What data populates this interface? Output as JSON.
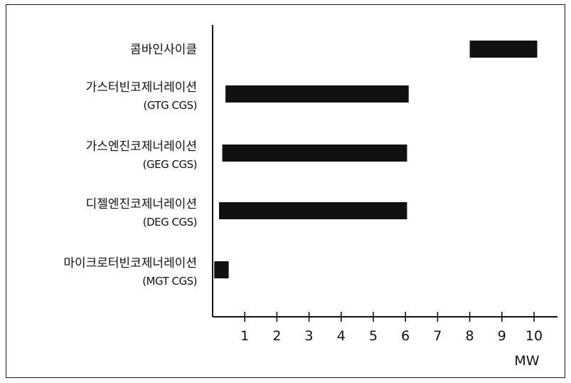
{
  "chart_data": {
    "type": "bar",
    "orientation": "horizontal",
    "categories": [
      {
        "label": "콤바인사이클",
        "sublabel": ""
      },
      {
        "label": "가스터빈코제너레이션",
        "sublabel": "(GTG CGS)"
      },
      {
        "label": "가스엔진코제너레이션",
        "sublabel": "(GEG CGS)"
      },
      {
        "label": "디젤엔진코제너레이션",
        "sublabel": "(DEG CGS)"
      },
      {
        "label": "마이크로터빈코제너레이션",
        "sublabel": "(MGT CGS)"
      }
    ],
    "ranges": [
      [
        8,
        10.1
      ],
      [
        0.4,
        6.1
      ],
      [
        0.3,
        6.05
      ],
      [
        0.2,
        6.05
      ],
      [
        0.05,
        0.5
      ]
    ],
    "xlim": [
      0,
      10.6
    ],
    "xticks": [
      "1",
      "2",
      "3",
      "4",
      "5",
      "6",
      "7",
      "8",
      "9",
      "10"
    ],
    "xunit": "MW",
    "bar_color": "#111111",
    "axis_color": "#111111",
    "grid": false
  }
}
